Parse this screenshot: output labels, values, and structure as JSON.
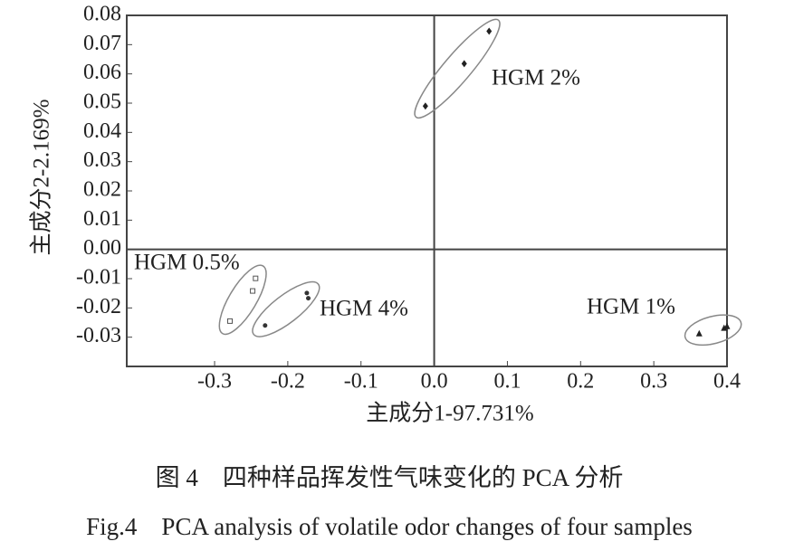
{
  "chart_data": {
    "type": "scatter",
    "xlabel": "主成分1-97.731%",
    "ylabel": "主成分2-2.169%",
    "caption_cn": "图 4　四种样品挥发性气味变化的 PCA 分析",
    "caption_en": "Fig.4　PCA analysis of volatile odor changes of four samples",
    "xlim": [
      -0.42,
      0.4
    ],
    "ylim": [
      -0.04,
      0.08
    ],
    "xticks": [
      -0.3,
      -0.2,
      -0.1,
      {
        "value": 0,
        "label": "0.0"
      },
      0.1,
      0.2,
      0.3,
      0.4
    ],
    "yticks": [
      0.08,
      0.07,
      0.06,
      0.05,
      0.04,
      0.03,
      0.02,
      0.01,
      {
        "value": 0,
        "label": "0.00"
      },
      -0.01,
      -0.02,
      -0.03
    ],
    "series": [
      {
        "name": "HGM 2%",
        "color": "#222222",
        "marker": "diamond",
        "x": [
          -0.012,
          0.041,
          0.075
        ],
        "values": [
          0.049,
          0.0635,
          0.0746
        ]
      },
      {
        "name": "HGM 0.5%",
        "color": "#555555",
        "marker": "square",
        "x": [
          -0.244,
          -0.248,
          -0.279
        ],
        "values": [
          -0.0099,
          -0.0142,
          -0.0245
        ]
      },
      {
        "name": "HGM 4%",
        "color": "#333333",
        "marker": "dot",
        "x": [
          -0.174,
          -0.172,
          -0.231
        ],
        "values": [
          -0.0149,
          -0.0167,
          -0.026
        ]
      },
      {
        "name": "HGM 1%",
        "color": "#222222",
        "marker": "triangle",
        "x": [
          0.362,
          0.396,
          0.4
        ],
        "values": [
          -0.0288,
          -0.0269,
          -0.0263
        ]
      }
    ]
  }
}
